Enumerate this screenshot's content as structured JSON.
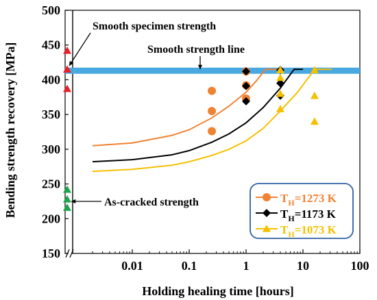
{
  "chart_data": {
    "type": "scatter",
    "xlabel": "Holding healing time [hours]",
    "ylabel": "Bending strength recovery [MPa]",
    "xscale": "log",
    "xlim": [
      0.001,
      100
    ],
    "ylim": [
      150,
      500
    ],
    "x_axis_break": true,
    "grid": false,
    "x_ticks": [
      0.01,
      0.1,
      1,
      10,
      100
    ],
    "x_tick_labels": [
      "0.01",
      "0.1",
      "1",
      "10",
      "100"
    ],
    "y_ticks": [
      150,
      200,
      250,
      300,
      350,
      400,
      450,
      500
    ],
    "y_tick_labels": [
      "150",
      "200",
      "250",
      "300",
      "350",
      "400",
      "450",
      "500"
    ],
    "reference_line": {
      "label": "Smooth strength line",
      "y": 413,
      "color": "#4aa8e0"
    },
    "annotations": [
      {
        "text": "Smooth specimen strength",
        "target": "smooth-specimen-points"
      },
      {
        "text": "Smooth strength line",
        "target": "reference-line"
      },
      {
        "text": "As-cracked strength",
        "target": "as-cracked-points"
      }
    ],
    "smooth_specimen_points": {
      "marker": "triangle",
      "color": "#e8202a",
      "values": [
        442,
        415,
        387
      ]
    },
    "as_cracked_points": {
      "marker": "triangle",
      "color": "#1ca64c",
      "values": [
        242,
        228,
        216
      ]
    },
    "series": [
      {
        "subscript": "H",
        "legend_label": "T",
        "legend_suffix": "=1273 K",
        "color": "#f08232",
        "marker": "circle",
        "points": [
          [
            0.25,
            384
          ],
          [
            0.25,
            355
          ],
          [
            0.25,
            326
          ],
          [
            1,
            412
          ],
          [
            1,
            392
          ],
          [
            1,
            373
          ]
        ],
        "fit_curve": [
          [
            0.002,
            305
          ],
          [
            0.01,
            309
          ],
          [
            0.05,
            320
          ],
          [
            0.1,
            328
          ],
          [
            0.25,
            345
          ],
          [
            0.5,
            362
          ],
          [
            1,
            382
          ],
          [
            1.5,
            398
          ],
          [
            2.2,
            415
          ],
          [
            4,
            415
          ]
        ]
      },
      {
        "subscript": "H",
        "legend_label": "T",
        "legend_suffix": "=1173 K",
        "color": "#000000",
        "marker": "diamond",
        "points": [
          [
            1,
            412
          ],
          [
            1,
            391
          ],
          [
            1,
            369
          ],
          [
            4,
            414
          ],
          [
            4,
            395
          ],
          [
            4,
            377
          ]
        ],
        "fit_curve": [
          [
            0.002,
            282
          ],
          [
            0.01,
            285
          ],
          [
            0.05,
            292
          ],
          [
            0.1,
            298
          ],
          [
            0.25,
            310
          ],
          [
            0.5,
            322
          ],
          [
            1,
            338
          ],
          [
            2,
            360
          ],
          [
            4,
            388
          ],
          [
            7,
            415
          ],
          [
            10,
            415
          ]
        ]
      },
      {
        "subscript": "H",
        "legend_label": "T",
        "legend_suffix": "=1073 K",
        "color": "#f5c000",
        "marker": "triangle",
        "points": [
          [
            4,
            414
          ],
          [
            4,
            403
          ],
          [
            4,
            380
          ],
          [
            4,
            358
          ],
          [
            16,
            414
          ],
          [
            16,
            377
          ],
          [
            16,
            340
          ]
        ],
        "fit_curve": [
          [
            0.002,
            268
          ],
          [
            0.01,
            271
          ],
          [
            0.05,
            277
          ],
          [
            0.1,
            282
          ],
          [
            0.25,
            291
          ],
          [
            0.5,
            300
          ],
          [
            1,
            312
          ],
          [
            2,
            330
          ],
          [
            4,
            355
          ],
          [
            8,
            382
          ],
          [
            13,
            405
          ],
          [
            16,
            415
          ],
          [
            32,
            415
          ]
        ]
      }
    ],
    "legend": {
      "position": "bottom-right",
      "border_color": "#2e5fa3"
    }
  }
}
